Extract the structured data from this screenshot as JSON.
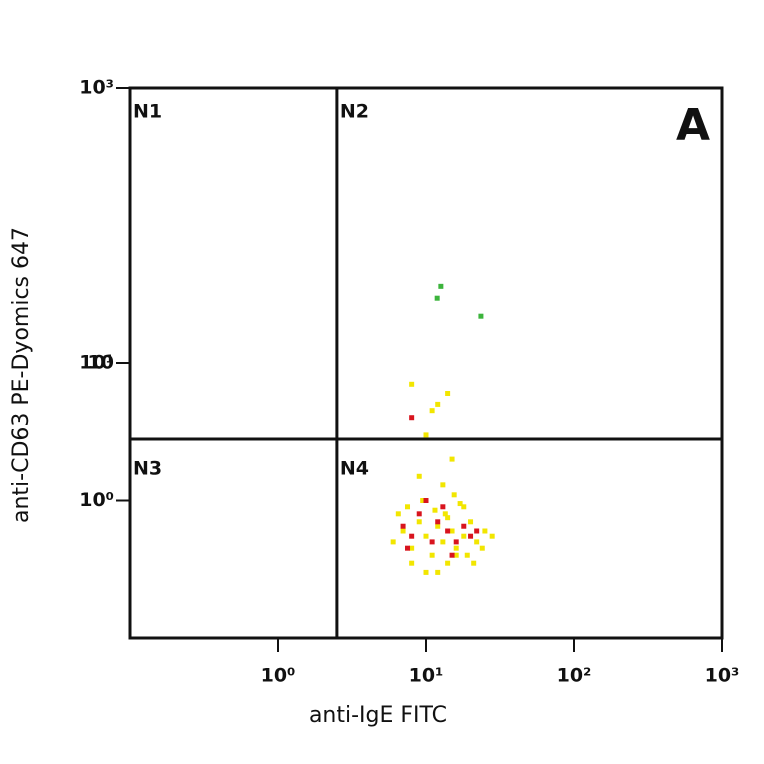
{
  "chart_data": {
    "type": "scatter",
    "panel_label": "A",
    "x_label": "anti-IgE FITC",
    "y_label": "anti-CD63 PE-Dyomics 647",
    "xscale": "log",
    "yscale": "log",
    "xlim": [
      0.1,
      1000
    ],
    "ylim": [
      0.1,
      1000
    ],
    "xticks": [
      {
        "value": 1,
        "label": "10⁰"
      },
      {
        "value": 10,
        "label": "10¹"
      },
      {
        "value": 100,
        "label": "10²"
      },
      {
        "value": 1000,
        "label": "10³"
      }
    ],
    "yticks": [
      {
        "value": 1,
        "label": "10⁰"
      },
      {
        "value": 10,
        "label": "10¹"
      },
      10,
      {
        "value": 1000,
        "label": "10³"
      }
    ],
    "quadrant_x": 2.5,
    "quadrant_y": 2.8,
    "quadrant_labels": [
      "N1",
      "N2",
      "N3",
      "N4"
    ],
    "series": [
      {
        "color": "#f2e600",
        "x": [
          6,
          7,
          8,
          9,
          10,
          11,
          12,
          13,
          14,
          15,
          16,
          18,
          20,
          22,
          25,
          28,
          7.5,
          9.5,
          11.5,
          13.5,
          15.5,
          17,
          19,
          21,
          24,
          8,
          10,
          12,
          14,
          16,
          6.5,
          9,
          13,
          18,
          10,
          12,
          14,
          8,
          11,
          15
        ],
        "values": [
          0.5,
          0.6,
          0.45,
          0.7,
          0.55,
          0.4,
          0.65,
          0.5,
          0.75,
          0.6,
          0.45,
          0.55,
          0.7,
          0.5,
          0.6,
          0.55,
          0.9,
          1.0,
          0.85,
          0.8,
          1.1,
          0.95,
          0.4,
          0.35,
          0.45,
          0.35,
          0.3,
          0.3,
          0.35,
          0.4,
          0.8,
          1.5,
          1.3,
          0.9,
          3,
          5,
          6,
          7,
          4.5,
          2
        ]
      },
      {
        "color": "#d8141e",
        "x": [
          7,
          8,
          9,
          11,
          12,
          14,
          16,
          18,
          20,
          10,
          13,
          15,
          8,
          22,
          7.5
        ],
        "values": [
          0.65,
          0.55,
          0.8,
          0.5,
          0.7,
          0.6,
          0.5,
          0.65,
          0.55,
          1.0,
          0.9,
          0.4,
          4,
          0.6,
          0.45
        ]
      },
      {
        "color": "#3cb43c",
        "x": [
          12.6,
          11.9,
          23.5
        ],
        "values": [
          36.1,
          29.6,
          21.9
        ]
      }
    ]
  }
}
